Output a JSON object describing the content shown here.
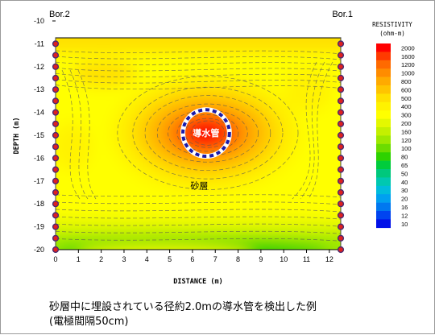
{
  "chart_data": {
    "type": "heatmap",
    "title": "",
    "xlabel": "DISTANCE (m)",
    "ylabel": "DEPTH (m)",
    "xlim": [
      0,
      12.5
    ],
    "ylim": [
      -20,
      -10
    ],
    "x_ticks": [
      0,
      1,
      2,
      3,
      4,
      5,
      6,
      7,
      8,
      9,
      10,
      11,
      12
    ],
    "y_ticks": [
      -10,
      -11,
      -12,
      -13,
      -14,
      -15,
      -16,
      -17,
      -18,
      -19,
      -20
    ],
    "boreholes": [
      {
        "label": "Bor.2",
        "x": 0
      },
      {
        "label": "Bor.1",
        "x": 12.5
      }
    ],
    "electrode_depths": [
      -11,
      -11.5,
      -12,
      -12.5,
      -13,
      -13.5,
      -14,
      -14.5,
      -15,
      -15.5,
      -16,
      -16.5,
      -17,
      -17.5,
      -18,
      -18.5,
      -19,
      -19.5,
      -20
    ],
    "annotations": [
      {
        "text": "導水管",
        "x": 6.6,
        "y": -14.9
      },
      {
        "text": "砂層",
        "x": 6.3,
        "y": -17.2
      }
    ],
    "pipe": {
      "center_x": 6.6,
      "center_y": -14.9,
      "diameter_m": 2.0
    },
    "resistivity_anomaly": {
      "background_ohm_m": 300,
      "anomaly_peak_ohm_m": 2000,
      "upper_layer_ohm_m": 500,
      "bottom_low_ohm_m": 60
    },
    "legend": {
      "title": "RESISTIVITY",
      "unit": "(ohm-m)",
      "levels": [
        {
          "value": "2000",
          "color": "#ff0000"
        },
        {
          "value": "1600",
          "color": "#ff3a00"
        },
        {
          "value": "1200",
          "color": "#ff6a00"
        },
        {
          "value": "1000",
          "color": "#ff8c00"
        },
        {
          "value": "800",
          "color": "#ffaa00"
        },
        {
          "value": "600",
          "color": "#ffc400"
        },
        {
          "value": "500",
          "color": "#ffe000"
        },
        {
          "value": "400",
          "color": "#fff200"
        },
        {
          "value": "300",
          "color": "#ffff00"
        },
        {
          "value": "200",
          "color": "#e4f800"
        },
        {
          "value": "160",
          "color": "#c4f000"
        },
        {
          "value": "120",
          "color": "#9ee800"
        },
        {
          "value": "100",
          "color": "#6cdc00"
        },
        {
          "value": "80",
          "color": "#2ed200"
        },
        {
          "value": "65",
          "color": "#00cc3c"
        },
        {
          "value": "50",
          "color": "#00c87c"
        },
        {
          "value": "40",
          "color": "#00c8b0"
        },
        {
          "value": "30",
          "color": "#00bcdc"
        },
        {
          "value": "20",
          "color": "#00a0f0"
        },
        {
          "value": "16",
          "color": "#0078f0"
        },
        {
          "value": "12",
          "color": "#0044f0"
        },
        {
          "value": "10",
          "color": "#0010e8"
        }
      ]
    }
  },
  "caption": {
    "line1": "砂層中に埋設されている径約2.0mの導水管を検出した例",
    "line2": "(電極間隔50cm)"
  }
}
